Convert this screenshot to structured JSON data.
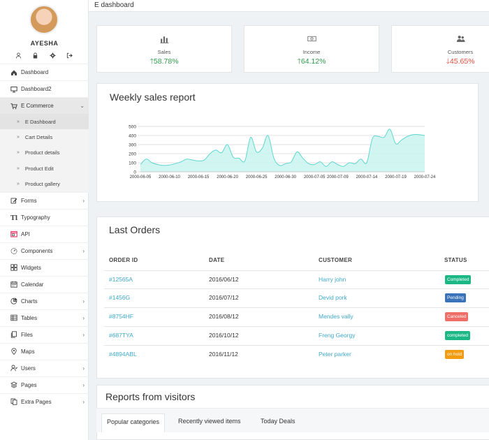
{
  "user": {
    "name": "AYESHA"
  },
  "topbar": {
    "title": "E dashboard"
  },
  "sidebar": {
    "items": [
      {
        "label": "Dashboard",
        "icon": "home-icon",
        "chevron": false
      },
      {
        "label": "Dashboard2",
        "icon": "monitor-icon",
        "chevron": false
      },
      {
        "label": "E Commerce",
        "icon": "cart-icon",
        "chevron": true,
        "expanded": true
      },
      {
        "label": "Forms",
        "icon": "edit-icon",
        "chevron": true
      },
      {
        "label": "Typography",
        "icon": "text-icon",
        "chevron": false
      },
      {
        "label": "API",
        "icon": "window-icon",
        "chevron": false
      },
      {
        "label": "Components",
        "icon": "gauge-icon",
        "chevron": true
      },
      {
        "label": "Widgets",
        "icon": "widgets-icon",
        "chevron": false
      },
      {
        "label": "Calendar",
        "icon": "calendar-icon",
        "chevron": false
      },
      {
        "label": "Charts",
        "icon": "pie-icon",
        "chevron": true
      },
      {
        "label": "Tables",
        "icon": "table-icon",
        "chevron": true
      },
      {
        "label": "Files",
        "icon": "files-icon",
        "chevron": true
      },
      {
        "label": "Maps",
        "icon": "map-pin-icon",
        "chevron": false
      },
      {
        "label": "Users",
        "icon": "users-icon",
        "chevron": true
      },
      {
        "label": "Pages",
        "icon": "layers-icon",
        "chevron": true
      },
      {
        "label": "Extra Pages",
        "icon": "copy-icon",
        "chevron": true
      }
    ],
    "ecommerce_sub": [
      {
        "label": "E Dashboard",
        "active": true
      },
      {
        "label": "Cart Details"
      },
      {
        "label": "Product details"
      },
      {
        "label": "Product Edit"
      },
      {
        "label": "Product gallery"
      }
    ]
  },
  "stats": [
    {
      "label": "Sales",
      "value": "58.78%",
      "trend": "up",
      "icon": "bar-chart-icon"
    },
    {
      "label": "Income",
      "value": "64.12%",
      "trend": "up",
      "icon": "money-icon"
    },
    {
      "label": "Customers",
      "value": "45.65%",
      "trend": "down",
      "icon": "users-icon"
    }
  ],
  "sales": {
    "title": "Weekly sales report"
  },
  "chart_data": {
    "type": "area",
    "title": "Weekly sales report",
    "xlabel": "",
    "ylabel": "",
    "ylim": [
      0,
      500
    ],
    "yticks": [
      0,
      100,
      200,
      300,
      400,
      500
    ],
    "xticks": [
      "2000-06-05",
      "2000-06-10",
      "2000-06-15",
      "2000-06-20",
      "2000-06-25",
      "2000-06-30",
      "2000-07-05",
      "2000-07-09",
      "2000-07-14",
      "2000-07-19",
      "2000-07-24"
    ],
    "x": [
      "2000-06-05",
      "2000-06-06",
      "2000-06-07",
      "2000-06-08",
      "2000-06-09",
      "2000-06-10",
      "2000-06-11",
      "2000-06-12",
      "2000-06-13",
      "2000-06-14",
      "2000-06-15",
      "2000-06-16",
      "2000-06-17",
      "2000-06-18",
      "2000-06-19",
      "2000-06-20",
      "2000-06-21",
      "2000-06-22",
      "2000-06-23",
      "2000-06-24",
      "2000-06-25",
      "2000-06-26",
      "2000-06-27",
      "2000-06-28",
      "2000-06-29",
      "2000-06-30",
      "2000-07-01",
      "2000-07-02",
      "2000-07-03",
      "2000-07-04",
      "2000-07-05",
      "2000-07-06",
      "2000-07-07",
      "2000-07-08",
      "2000-07-09",
      "2000-07-10",
      "2000-07-11",
      "2000-07-12",
      "2000-07-13",
      "2000-07-14",
      "2000-07-15",
      "2000-07-16",
      "2000-07-17",
      "2000-07-18",
      "2000-07-19",
      "2000-07-20",
      "2000-07-21",
      "2000-07-22",
      "2000-07-23",
      "2000-07-24"
    ],
    "series": [
      {
        "values": [
          80,
          140,
          100,
          80,
          70,
          75,
          90,
          110,
          140,
          130,
          120,
          130,
          200,
          240,
          210,
          300,
          160,
          150,
          120,
          380,
          220,
          260,
          400,
          150,
          70,
          90,
          110,
          220,
          150,
          90,
          80,
          110,
          60,
          110,
          80,
          60,
          100,
          90,
          140,
          100,
          370,
          390,
          380,
          470,
          310,
          350,
          390,
          410,
          410,
          400
        ],
        "color": "#5fd6d0"
      }
    ],
    "grid": true
  },
  "orders": {
    "title": "Last Orders",
    "columns": [
      "ORDER ID",
      "DATE",
      "CUSTOMER",
      "STATUS"
    ],
    "rows": [
      {
        "id": "#12565A",
        "date": "2016/06/12",
        "customer": "Harry john",
        "status": "Completed",
        "color": "#1bb886"
      },
      {
        "id": "#1456G",
        "date": "2016/07/12",
        "customer": "Devid pork",
        "status": "Pending",
        "color": "#3a73b9"
      },
      {
        "id": "#8754HF",
        "date": "2016/08/12",
        "customer": "Mendes vally",
        "status": "Canceled",
        "color": "#ef6e67"
      },
      {
        "id": "#687TYA",
        "date": "2016/10/12",
        "customer": "Freng Georgy",
        "status": "completed",
        "color": "#1bb886"
      },
      {
        "id": "#4894ABL",
        "date": "2016/11/12",
        "customer": "Peter parker",
        "status": "on hold",
        "color": "#f39c12"
      }
    ]
  },
  "reports": {
    "title": "Reports from visitors",
    "tabs": [
      "Popular categories",
      "Recently viewed items",
      "Today Deals"
    ]
  }
}
